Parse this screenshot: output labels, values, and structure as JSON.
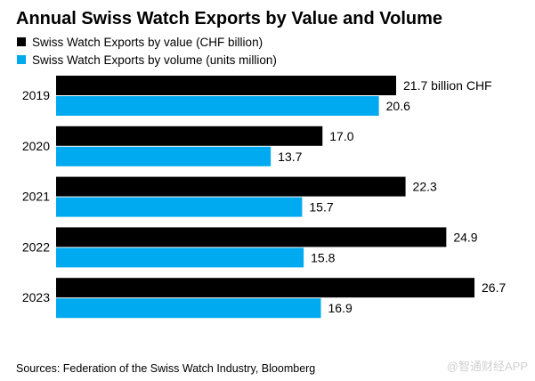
{
  "chart_data": {
    "type": "bar",
    "orientation": "horizontal",
    "title": "Annual Swiss Watch Exports by Value and Volume",
    "categories": [
      "2019",
      "2020",
      "2021",
      "2022",
      "2023"
    ],
    "series": [
      {
        "name": "Swiss Watch Exports by value (CHF billion)",
        "color": "#000000",
        "values": [
          21.7,
          17.0,
          22.3,
          24.9,
          26.7
        ],
        "labels": [
          "21.7 billion CHF",
          "17.0",
          "22.3",
          "24.9",
          "26.7"
        ]
      },
      {
        "name": "Swiss Watch Exports by volume (units million)",
        "color": "#00aaf0",
        "values": [
          20.6,
          13.7,
          15.7,
          15.8,
          16.9
        ],
        "labels": [
          "20.6",
          "13.7",
          "15.7",
          "15.8",
          "16.9"
        ]
      }
    ],
    "xlim": [
      0,
      30
    ],
    "grid": false,
    "legend": "top-left",
    "source": "Sources: Federation of the Swiss Watch Industry, Bloomberg",
    "watermark": "@智通财经APP"
  }
}
